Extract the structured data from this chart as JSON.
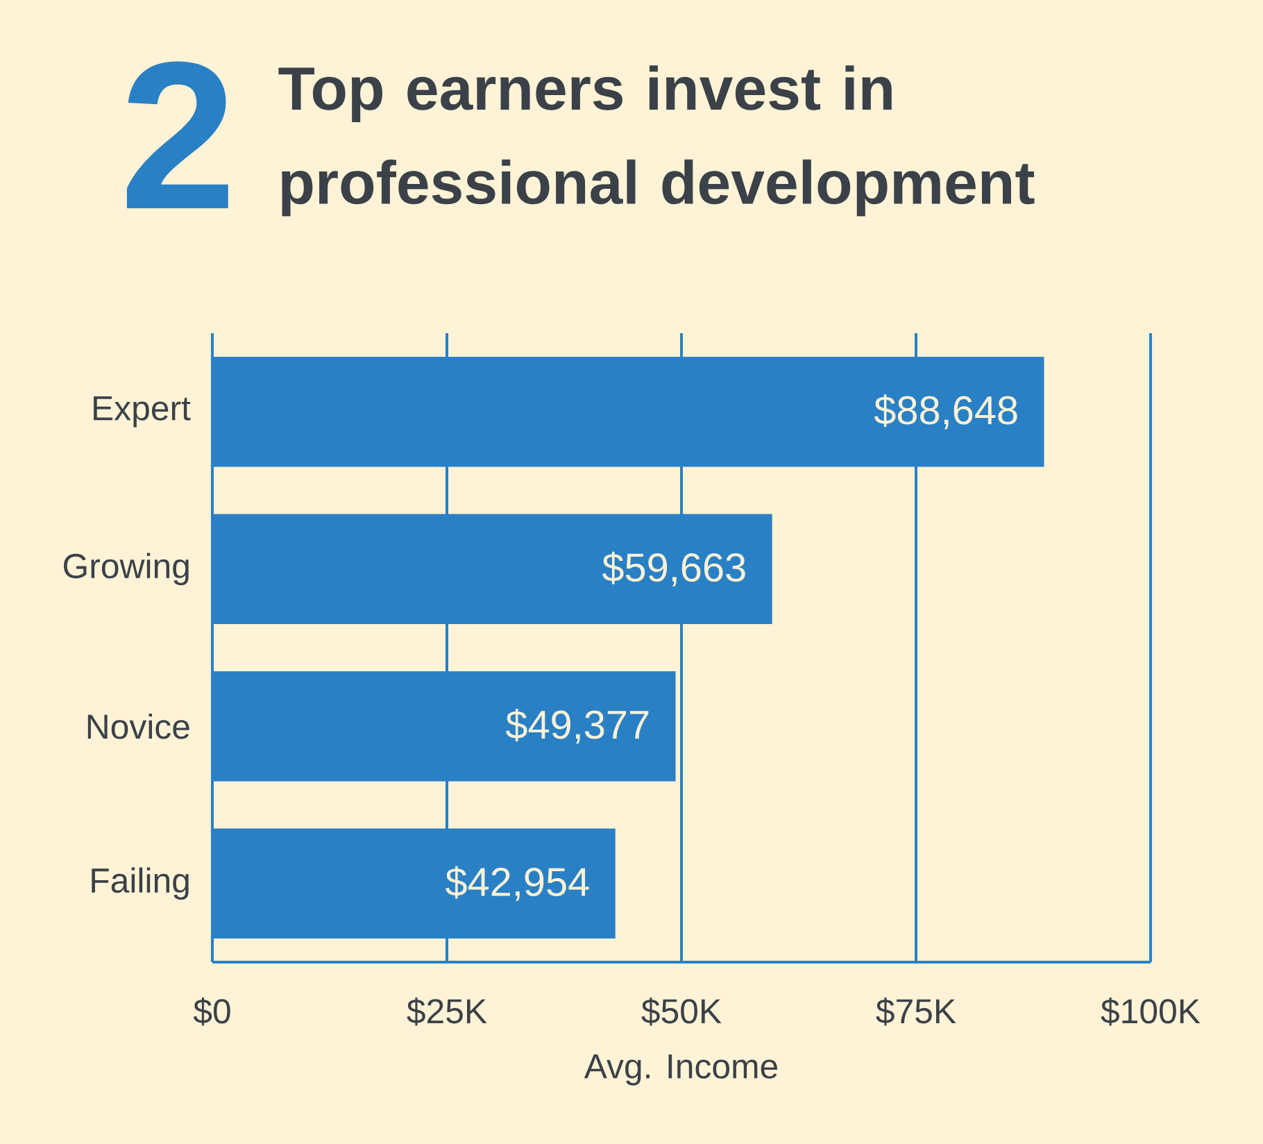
{
  "chart_data": {
    "type": "bar",
    "orientation": "horizontal",
    "title": "Top earners invest in professional development",
    "annotations": [
      "2"
    ],
    "categories": [
      "Expert",
      "Growing",
      "Novice",
      "Failing"
    ],
    "values": [
      88648,
      59663,
      49377,
      42954
    ],
    "value_labels": [
      "$88,648",
      "$59,663",
      "$49,377",
      "$42,954"
    ],
    "color": "#2a80c5",
    "xlabel": "Avg. Income",
    "xlim": [
      0,
      100000
    ],
    "xticks": [
      {
        "value": 0,
        "label": "$0"
      },
      {
        "value": 25000,
        "label": "$25K"
      },
      {
        "value": 50000,
        "label": "$50K"
      },
      {
        "value": 75000,
        "label": "$75K"
      },
      {
        "value": 100000,
        "label": "$100K"
      }
    ],
    "grid": "x"
  }
}
